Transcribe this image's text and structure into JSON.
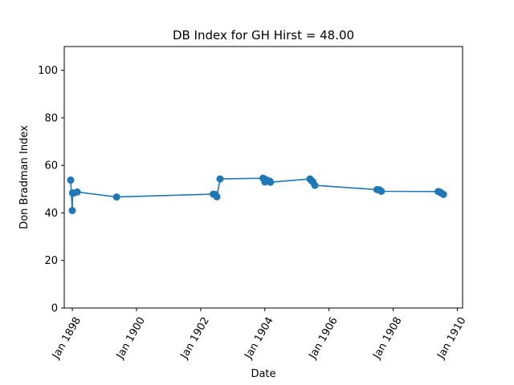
{
  "chart_data": {
    "type": "line",
    "title": "DB Index for GH Hirst = 48.00",
    "xlabel": "Date",
    "ylabel": "Don Bradman Index",
    "xlim": [
      "1897-10-01",
      "1910-03-01"
    ],
    "ylim": [
      0,
      110
    ],
    "x_ticks": [
      {
        "date": "1898-01-01",
        "label": "Jan 1898"
      },
      {
        "date": "1900-01-01",
        "label": "Jan 1900"
      },
      {
        "date": "1902-01-01",
        "label": "Jan 1902"
      },
      {
        "date": "1904-01-01",
        "label": "Jan 1904"
      },
      {
        "date": "1906-01-01",
        "label": "Jan 1906"
      },
      {
        "date": "1908-01-01",
        "label": "Jan 1908"
      },
      {
        "date": "1910-01-01",
        "label": "Jan 1910"
      }
    ],
    "y_ticks": [
      0,
      20,
      40,
      60,
      80,
      100
    ],
    "color": "#1f77b4",
    "series": [
      {
        "points": [
          {
            "x": "1897-12-13",
            "y": 53.8
          },
          {
            "x": "1897-12-31",
            "y": 41.0
          },
          {
            "x": "1898-01-03",
            "y": 48.4
          },
          {
            "x": "1898-01-15",
            "y": 48.3
          },
          {
            "x": "1898-02-26",
            "y": 48.8
          },
          {
            "x": "1899-05-20",
            "y": 46.7
          },
          {
            "x": "1902-05-25",
            "y": 47.9
          },
          {
            "x": "1902-06-20",
            "y": 47.7
          },
          {
            "x": "1902-07-05",
            "y": 46.8
          },
          {
            "x": "1902-08-10",
            "y": 54.3
          },
          {
            "x": "1903-12-12",
            "y": 54.6
          },
          {
            "x": "1904-01-02",
            "y": 53.0
          },
          {
            "x": "1904-01-15",
            "y": 54.0
          },
          {
            "x": "1904-02-26",
            "y": 53.4
          },
          {
            "x": "1904-03-05",
            "y": 52.9
          },
          {
            "x": "1905-05-29",
            "y": 54.3
          },
          {
            "x": "1905-06-16",
            "y": 53.6
          },
          {
            "x": "1905-07-03",
            "y": 53.0
          },
          {
            "x": "1905-07-24",
            "y": 51.6
          },
          {
            "x": "1907-07-01",
            "y": 49.8
          },
          {
            "x": "1907-07-29",
            "y": 49.7
          },
          {
            "x": "1907-08-19",
            "y": 49.1
          },
          {
            "x": "1909-05-27",
            "y": 49.0
          },
          {
            "x": "1909-06-14",
            "y": 48.8
          },
          {
            "x": "1909-07-01",
            "y": 48.4
          },
          {
            "x": "1909-07-26",
            "y": 47.8
          }
        ]
      }
    ]
  }
}
